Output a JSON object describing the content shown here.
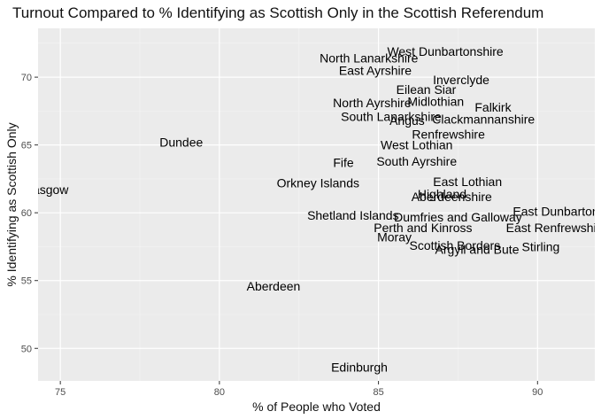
{
  "chart_data": {
    "type": "scatter",
    "title": "Turnout Compared to % Identifying as Scottish Only in the Scottish Referendum",
    "xlabel": "% of People who Voted",
    "ylabel": "% Identifying as Scottish Only",
    "xlim": [
      74.3,
      91.8
    ],
    "ylim": [
      47.6,
      73.6
    ],
    "xticks": [
      75,
      80,
      85,
      90
    ],
    "yticks": [
      50,
      55,
      60,
      65,
      70
    ],
    "grid": true,
    "points": [
      {
        "label": "West Dunbartonshire",
        "x": 87.1,
        "y": 71.9
      },
      {
        "label": "North Lanarkshire",
        "x": 84.7,
        "y": 71.4
      },
      {
        "label": "East Ayrshire",
        "x": 84.9,
        "y": 70.5
      },
      {
        "label": "Inverclyde",
        "x": 87.6,
        "y": 69.8
      },
      {
        "label": "Eilean Siar",
        "x": 86.5,
        "y": 69.1
      },
      {
        "label": "North Ayrshire",
        "x": 84.8,
        "y": 68.1
      },
      {
        "label": "Midlothian",
        "x": 86.8,
        "y": 68.2
      },
      {
        "label": "Falkirk",
        "x": 88.6,
        "y": 67.8
      },
      {
        "label": "South Lanarkshire",
        "x": 85.4,
        "y": 67.1
      },
      {
        "label": "Angus",
        "x": 85.9,
        "y": 66.8
      },
      {
        "label": "Clackmannanshire",
        "x": 88.3,
        "y": 66.9
      },
      {
        "label": "Renfrewshire",
        "x": 87.2,
        "y": 65.8
      },
      {
        "label": "Dundee",
        "x": 78.8,
        "y": 65.2
      },
      {
        "label": "West Lothian",
        "x": 86.2,
        "y": 65.0
      },
      {
        "label": "Fife",
        "x": 83.9,
        "y": 63.7
      },
      {
        "label": "South Ayrshire",
        "x": 86.2,
        "y": 63.8
      },
      {
        "label": "Orkney Islands",
        "x": 83.1,
        "y": 62.2
      },
      {
        "label": "Glasgow",
        "x": 74.5,
        "y": 61.7
      },
      {
        "label": "East Lothian",
        "x": 87.8,
        "y": 62.3
      },
      {
        "label": "Highland",
        "x": 87.0,
        "y": 61.4
      },
      {
        "label": "Aberdeenshire",
        "x": 87.3,
        "y": 61.2
      },
      {
        "label": "East Dunbartonshire",
        "x": 91.0,
        "y": 60.1
      },
      {
        "label": "Shetland Islands",
        "x": 84.2,
        "y": 59.8
      },
      {
        "label": "Dumfries and Galloway",
        "x": 87.5,
        "y": 59.7
      },
      {
        "label": "Perth and Kinross",
        "x": 86.4,
        "y": 58.9
      },
      {
        "label": "East Renfrewshire",
        "x": 90.6,
        "y": 58.9
      },
      {
        "label": "Moray",
        "x": 85.5,
        "y": 58.2
      },
      {
        "label": "Scottish Borders",
        "x": 87.4,
        "y": 57.6
      },
      {
        "label": "Stirling",
        "x": 90.1,
        "y": 57.5
      },
      {
        "label": "Argyll and Bute",
        "x": 88.1,
        "y": 57.3
      },
      {
        "label": "Aberdeen",
        "x": 81.7,
        "y": 54.6
      },
      {
        "label": "Edinburgh",
        "x": 84.4,
        "y": 48.6
      }
    ]
  }
}
